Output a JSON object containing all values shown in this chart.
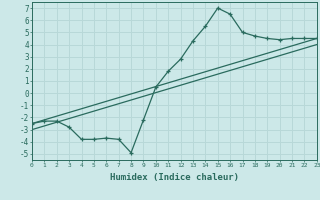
{
  "xlabel": "Humidex (Indice chaleur)",
  "background_color": "#cce8e8",
  "grid_color": "#b8d8d8",
  "line_color": "#2a6b5e",
  "xlim": [
    0,
    23
  ],
  "ylim": [
    -5.5,
    7.5
  ],
  "xticks": [
    0,
    1,
    2,
    3,
    4,
    5,
    6,
    7,
    8,
    9,
    10,
    11,
    12,
    13,
    14,
    15,
    16,
    17,
    18,
    19,
    20,
    21,
    22,
    23
  ],
  "yticks": [
    -5,
    -4,
    -3,
    -2,
    -1,
    0,
    1,
    2,
    3,
    4,
    5,
    6,
    7
  ],
  "line1_x": [
    0,
    1,
    2,
    3,
    4,
    5,
    6,
    7,
    8,
    9,
    10,
    11,
    12,
    13,
    14,
    15,
    16,
    17,
    18,
    19,
    20,
    21,
    22,
    23
  ],
  "line1_y": [
    -2.5,
    -2.3,
    -2.3,
    -2.8,
    -3.8,
    -3.8,
    -3.7,
    -3.8,
    -4.9,
    -2.2,
    0.5,
    1.8,
    2.8,
    4.3,
    5.5,
    7.0,
    6.5,
    5.0,
    4.7,
    4.5,
    4.4,
    4.5,
    4.5,
    4.5
  ],
  "line2_x": [
    0,
    23
  ],
  "line2_y": [
    -2.5,
    4.5
  ],
  "line3_x": [
    0,
    23
  ],
  "line3_y": [
    -3.0,
    4.0
  ]
}
